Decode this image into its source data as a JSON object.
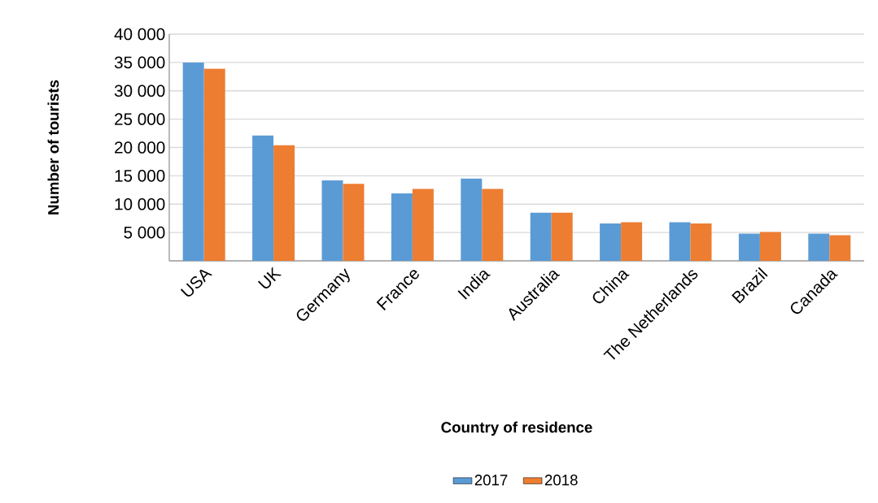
{
  "chart_data": {
    "type": "bar",
    "xlabel": "Country of residence",
    "ylabel": "Number of tourists",
    "categories": [
      "USA",
      "UK",
      "Germany",
      "France",
      "India",
      "Australia",
      "China",
      "The Netherlands",
      "Brazil",
      "Canada"
    ],
    "series": [
      {
        "name": "2017",
        "color": "#5b9bd5",
        "values": [
          35000,
          22100,
          14200,
          11900,
          14500,
          8500,
          6600,
          6800,
          4800,
          4800
        ]
      },
      {
        "name": "2018",
        "color": "#ed7d31",
        "values": [
          33900,
          20400,
          13600,
          12700,
          12700,
          8500,
          6800,
          6600,
          5100,
          4500
        ]
      }
    ],
    "ylim": [
      0,
      40000
    ],
    "yticks": [
      {
        "value": 5000,
        "label": "5 000"
      },
      {
        "value": 10000,
        "label": "10 000"
      },
      {
        "value": 15000,
        "label": "15 000"
      },
      {
        "value": 20000,
        "label": "20 000"
      },
      {
        "value": 25000,
        "label": "25 000"
      },
      {
        "value": 30000,
        "label": "30 000"
      },
      {
        "value": 35000,
        "label": "35 000"
      },
      {
        "value": 40000,
        "label": "40 000"
      }
    ],
    "grid": "y",
    "legend": "bottom"
  }
}
